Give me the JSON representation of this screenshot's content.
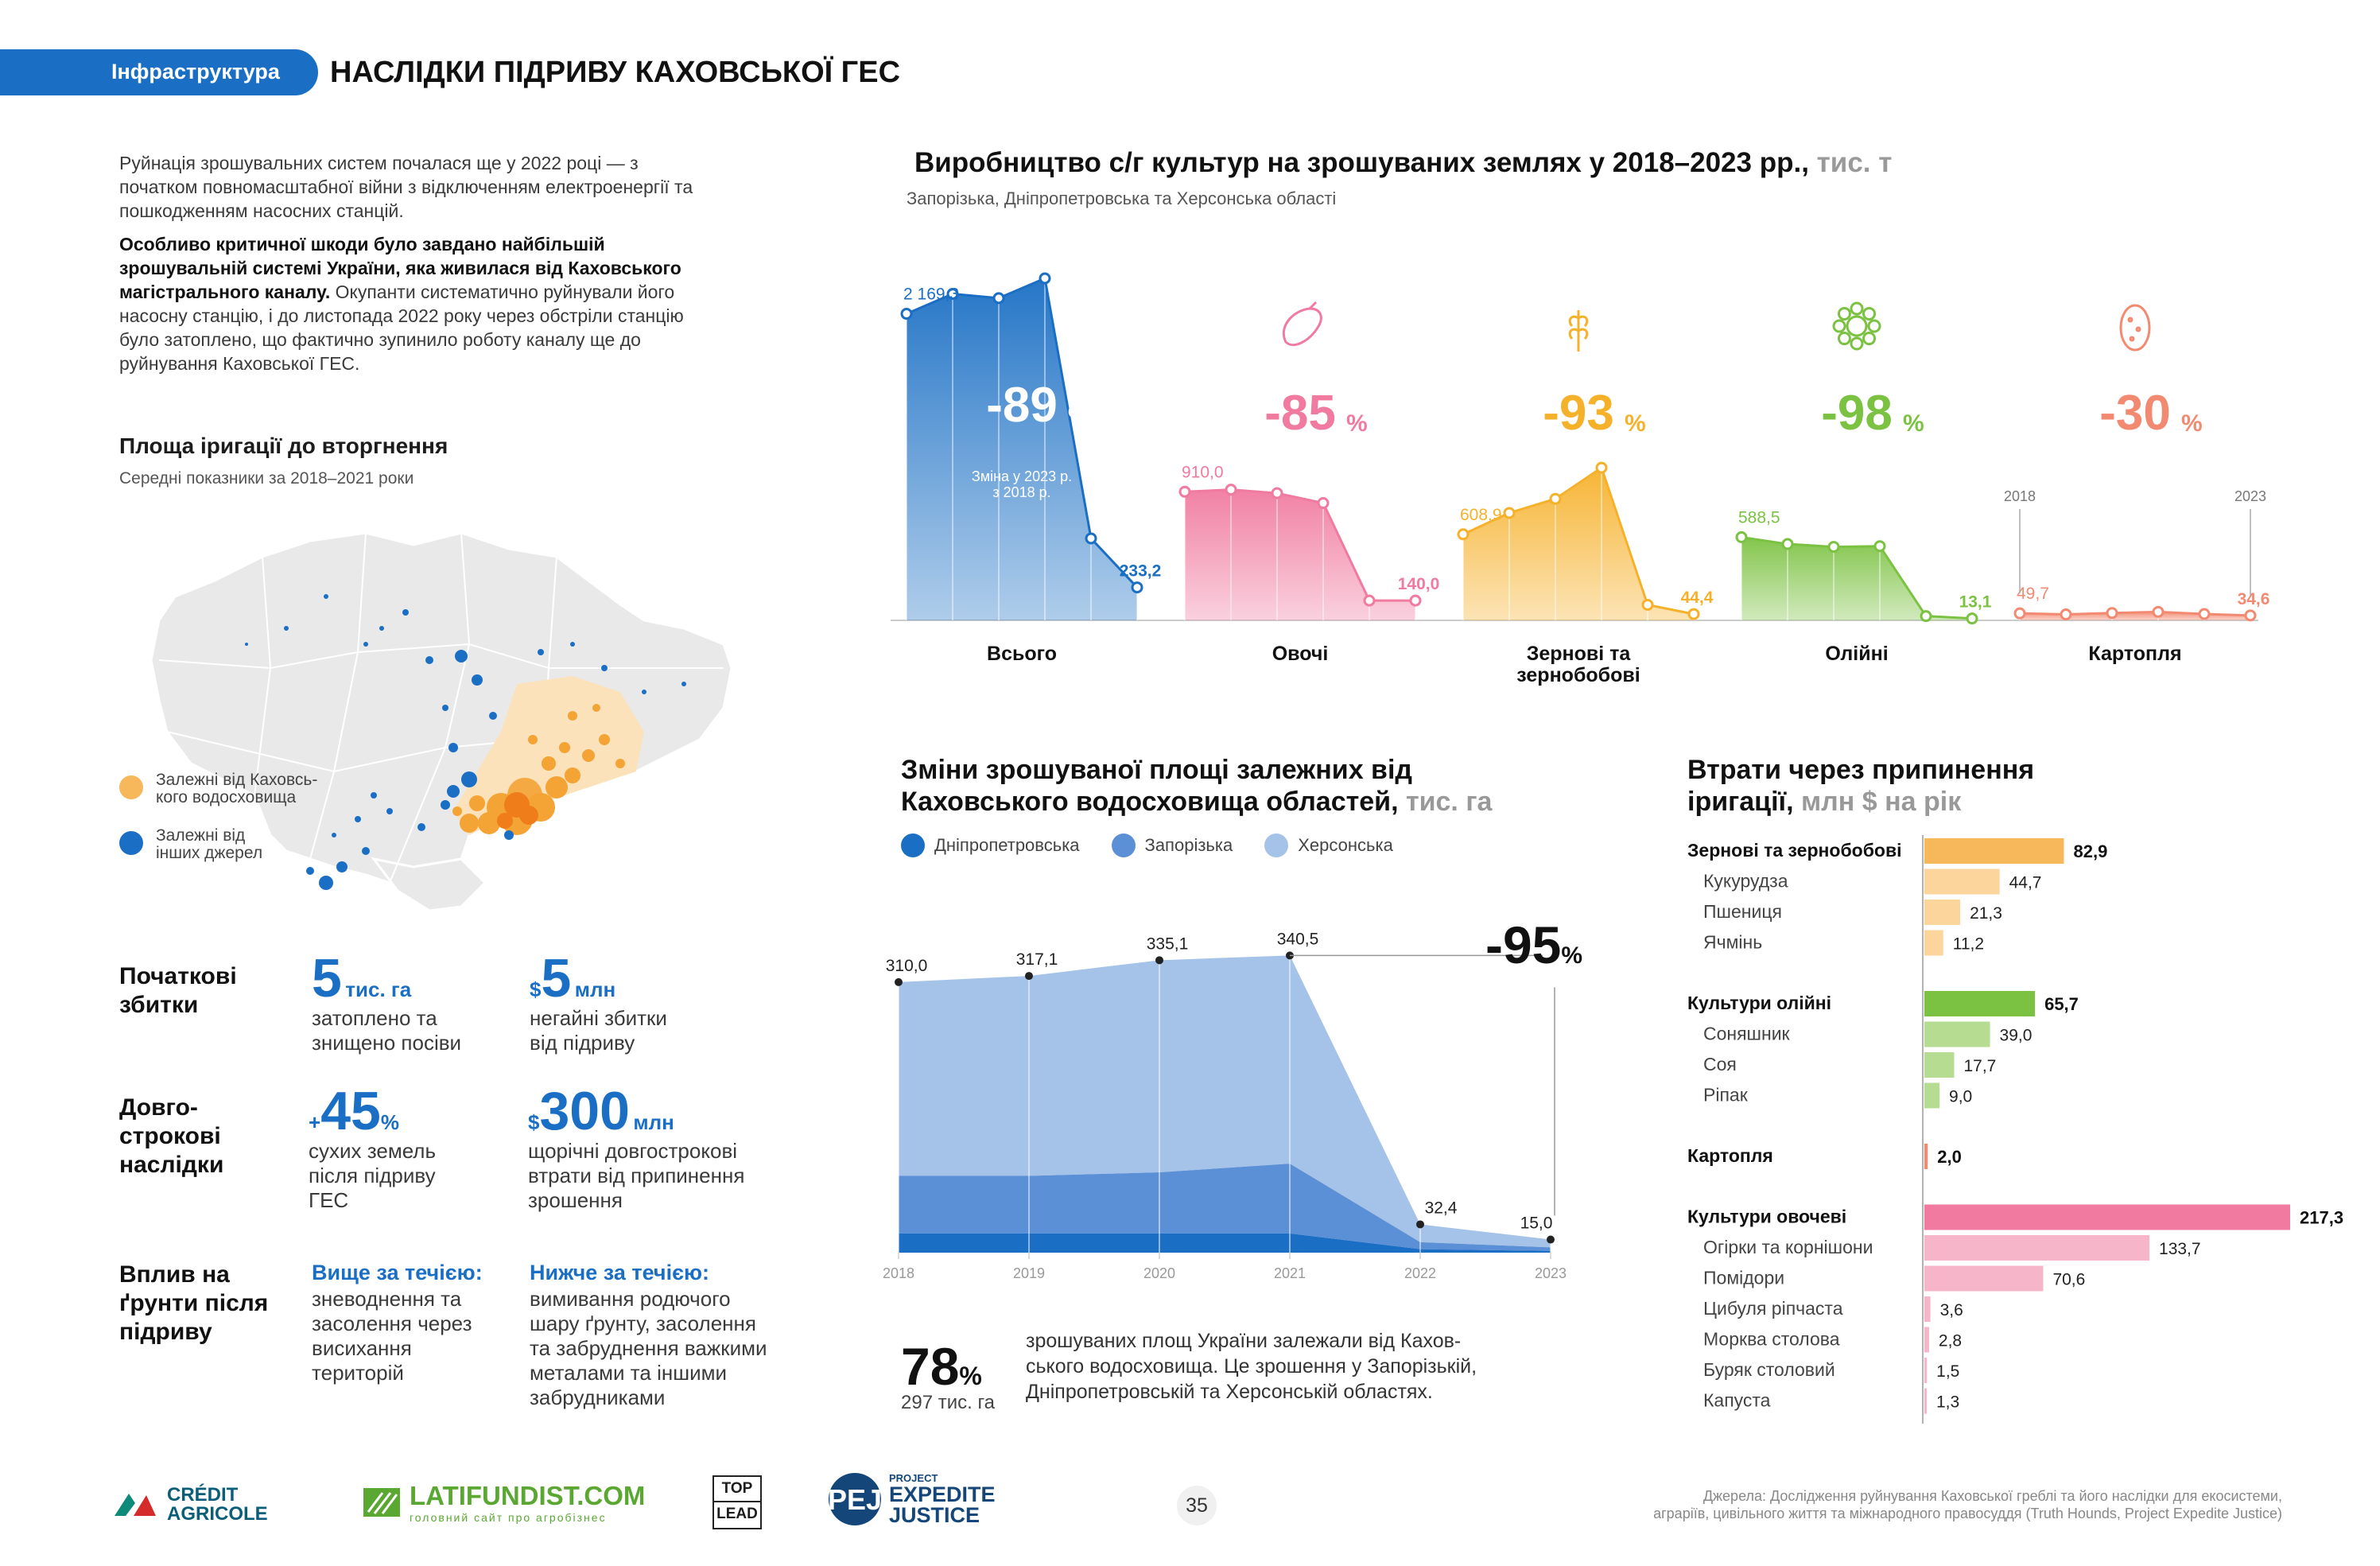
{
  "header": {
    "section": "Інфраструктура",
    "title": "НАСЛІДКИ ПІДРИВУ КАХОВСЬКОЇ ГЕС"
  },
  "intro": {
    "p1": "Руйнація зрошувальних систем почалася ще у 2022 році — з початком повномасштабної війни з відключенням електроенергії та пошкодженням насосних станцій.",
    "p2_bold": "Особливо критичної шкоди було завдано найбільшій зрошувальній системі України, яка живилася від Каховського магістрального каналу.",
    "p2_rest": " Окупанти систематично руйнували його насосну станцію, і до листопада 2022 року через обстріли станцію було затоплено, що фактично зупинило роботу каналу ще до руйнування Каховської ГЕС."
  },
  "map": {
    "title": "Площа іригації до вторгнення",
    "subtitle": "Середні показники за 2018–2021 роки",
    "legend": [
      {
        "label_1": "Залежні від Каховсь-",
        "label_2": "кого водосховища",
        "color": "#f6b85a"
      },
      {
        "label_1": "Залежні від",
        "label_2": "інших джерел",
        "color": "#1a6fc4"
      }
    ]
  },
  "impacts": {
    "initial": {
      "label_1": "Початкові",
      "label_2": "збитки",
      "k1_num": "5",
      "k1_unit": "тис. га",
      "k1_text_1": "затоплено та",
      "k1_text_2": "знищено посіви",
      "k2_prefix": "$",
      "k2_num": "5",
      "k2_unit": "млн",
      "k2_text_1": "негайні збитки",
      "k2_text_2": "від підриву"
    },
    "longterm": {
      "label_1": "Довго-",
      "label_2": "строкові",
      "label_3": "наслідки",
      "k1_prefix": "+",
      "k1_num": "45",
      "k1_unit": "%",
      "k1_text_1": "сухих земель",
      "k1_text_2": "після підриву",
      "k1_text_3": "ГЕС",
      "k2_prefix": "$",
      "k2_num": "300",
      "k2_unit": "млн",
      "k2_text_1": "щорічні довгострокові",
      "k2_text_2": "втрати від припинення",
      "k2_text_3": "зрошення"
    },
    "soil": {
      "label_1": "Вплив на",
      "label_2": "ґрунти після",
      "label_3": "підриву",
      "up_title": "Вище за течією:",
      "up_1": "зневоднення та",
      "up_2": "засолення через",
      "up_3": "висихання",
      "up_4": "територій",
      "down_title": "Нижче за течією:",
      "down_1": "вимивання родючого",
      "down_2": "шару ґрунту, засолення",
      "down_3": "та забруднення важкими",
      "down_4": "металами та іншими",
      "down_5": "забрудниками"
    }
  },
  "production": {
    "title": "Виробництво с/г культур на зрошуваних землях у 2018–2023 рр.,",
    "unit": "тис. т",
    "subtitle": "Запорізька, Дніпропетровська та Херсонська області",
    "year_start": "2018",
    "year_end": "2023",
    "total_note_1": "Зміна у 2023 р.",
    "total_note_2": "з 2018 р."
  },
  "area": {
    "title_1": "Зміни зрошуваної площі залежних від",
    "title_2": "Каховського водосховища областей,",
    "unit": "тис. га",
    "change": "-95",
    "change_unit": "%"
  },
  "losses": {
    "title_1": "Втрати через припинення",
    "title_2": "іригації,",
    "unit": "млн $ на рік"
  },
  "stat78": {
    "value": "78",
    "unit": "%",
    "sub": "297 тис. га",
    "text_1": "зрошуваних площ України залежали від Кахов-",
    "text_2": "ського водосховища. Це зрошення у Запорізькій,",
    "text_3": "Дніпропетровській та Херсонській областях."
  },
  "footer": {
    "logo1_1": "CRÉDIT",
    "logo1_2": "AGRICOLE",
    "logo2": "LATIFUNDIST.COM",
    "logo2_sub": "головний сайт про агробізнес",
    "logo3_1": "TOP",
    "logo3_2": "LEAD",
    "logo4_1": "PROJECT",
    "logo4_2": "EXPEDITE",
    "logo4_3": "JUSTICE",
    "page": "35",
    "source_1": "Джерела: Дослідження руйнування Каховської греблі та його наслідки для екосистеми,",
    "source_2": "аграріїв, цивільного життя та міжнародного правосуддя (Truth Hounds, Project Expedite Justice)"
  },
  "chart_data": [
    {
      "type": "area",
      "id": "production",
      "title": "Виробництво с/г культур на зрошуваних землях у 2018–2023 рр., тис. т",
      "x": [
        "2018",
        "2019",
        "2020",
        "2021",
        "2022",
        "2023"
      ],
      "series": [
        {
          "name": "Всього",
          "color": "#1a6fc4",
          "values": [
            2169.3,
            2310,
            2280,
            2420,
            580,
            233.2
          ],
          "first_label": "2 169,3",
          "last_label": "233,2",
          "change": "-89",
          "unit": "%"
        },
        {
          "name": "Овочі",
          "color": "#f07aa0",
          "values": [
            910.0,
            925,
            900,
            830,
            140,
            140.0
          ],
          "first_label": "910,0",
          "last_label": "140,0",
          "change": "-85",
          "unit": "%"
        },
        {
          "name": "Зернові та зернобобові",
          "name_1": "Зернові та",
          "name_2": "зернобобові",
          "color": "#f6b12b",
          "values": [
            608.9,
            760,
            860,
            1080,
            110,
            44.4
          ],
          "first_label": "608,9",
          "last_label": "44,4",
          "change": "-93",
          "unit": "%"
        },
        {
          "name": "Олійні",
          "color": "#7cc242",
          "values": [
            588.5,
            540,
            520,
            525,
            30,
            13.1
          ],
          "first_label": "588,5",
          "last_label": "13,1",
          "change": "-98",
          "unit": "%"
        },
        {
          "name": "Картопля",
          "color": "#f28a72",
          "values": [
            49.7,
            42,
            52,
            60,
            45,
            34.6
          ],
          "first_label": "49,7",
          "last_label": "34,6",
          "change": "-30",
          "unit": "%"
        }
      ]
    },
    {
      "type": "area",
      "id": "irrigated-area",
      "title": "Зміни зрошуваної площі залежних від Каховського водосховища областей, тис. га",
      "x": [
        "2018",
        "2019",
        "2020",
        "2021",
        "2022",
        "2023"
      ],
      "totals": [
        310.0,
        317.1,
        335.1,
        340.5,
        32.4,
        15.0
      ],
      "total_labels": [
        "310,0",
        "317,1",
        "335,1",
        "340,5",
        "32,4",
        "15,0"
      ],
      "ylim": [
        0,
        360
      ],
      "series": [
        {
          "name": "Дніпропетровська",
          "color": "#1a6fc4",
          "values": [
            22,
            22,
            22,
            22,
            4,
            2
          ]
        },
        {
          "name": "Запорізька",
          "color": "#5b8fd6",
          "values": [
            66,
            66,
            70,
            80,
            8,
            4
          ]
        },
        {
          "name": "Херсонська",
          "color": "#a5c2e8",
          "values": [
            222,
            229.1,
            243.1,
            238.5,
            20.4,
            9
          ]
        }
      ]
    },
    {
      "type": "bar",
      "id": "losses",
      "title": "Втрати через припинення іригації, млн $ на рік",
      "xlim": [
        0,
        217.3
      ],
      "groups": [
        {
          "name": "Зернові та зернобобові",
          "value": 82.9,
          "label": "82,9",
          "color": "#f6b85a",
          "light": "#fbd59b",
          "items": [
            {
              "name": "Кукурудза",
              "value": 44.7,
              "label": "44,7"
            },
            {
              "name": "Пшениця",
              "value": 21.3,
              "label": "21,3"
            },
            {
              "name": "Ячмінь",
              "value": 11.2,
              "label": "11,2"
            }
          ]
        },
        {
          "name": "Культури олійні",
          "value": 65.7,
          "label": "65,7",
          "color": "#7cc242",
          "light": "#b5dc90",
          "items": [
            {
              "name": "Соняшник",
              "value": 39.0,
              "label": "39,0"
            },
            {
              "name": "Соя",
              "value": 17.7,
              "label": "17,7"
            },
            {
              "name": "Ріпак",
              "value": 9.0,
              "label": "9,0"
            }
          ]
        },
        {
          "name": "Картопля",
          "value": 2.0,
          "label": "2,0",
          "color": "#f28a72",
          "light": "#f7b8a8",
          "items": []
        },
        {
          "name": "Культури овочеві",
          "value": 217.3,
          "label": "217,3",
          "color": "#f07aa0",
          "light": "#f7b5ca",
          "items": [
            {
              "name": "Огірки та корнішони",
              "value": 133.7,
              "label": "133,7"
            },
            {
              "name": "Помідори",
              "value": 70.6,
              "label": "70,6"
            },
            {
              "name": "Цибуля ріпчаста",
              "value": 3.6,
              "label": "3,6"
            },
            {
              "name": "Морква столова",
              "value": 2.8,
              "label": "2,8"
            },
            {
              "name": "Буряк столовий",
              "value": 1.5,
              "label": "1,5"
            },
            {
              "name": "Капуста",
              "value": 1.3,
              "label": "1,3"
            }
          ]
        }
      ]
    }
  ]
}
